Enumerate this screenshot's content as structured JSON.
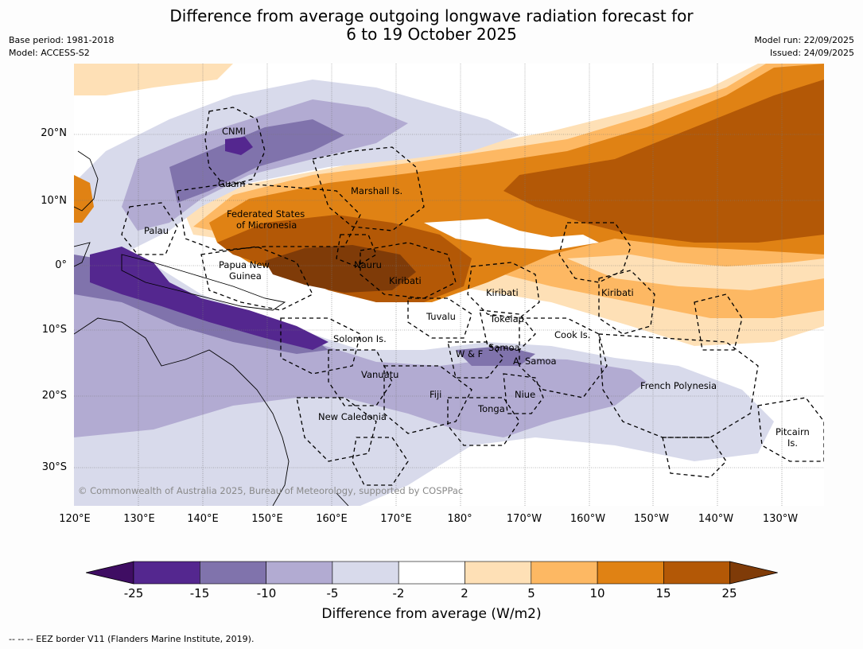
{
  "title": {
    "line1": "Difference from average outgoing longwave radiation forecast for",
    "line2": "6 to 19 October 2025"
  },
  "meta": {
    "base_period": "Base period: 1981-2018",
    "model": "Model: ACCESS-S2",
    "model_run": "Model run: 22/09/2025",
    "issued": "Issued: 24/09/2025"
  },
  "axes": {
    "lat_labels": [
      "20°N",
      "10°N",
      "0°",
      "10°S",
      "20°S",
      "30°S"
    ],
    "lon_labels": [
      "120°E",
      "130°E",
      "140°E",
      "150°E",
      "160°E",
      "170°E",
      "180°",
      "170°W",
      "160°W",
      "150°W",
      "140°W",
      "130°W"
    ]
  },
  "places": {
    "cnmi": "CNMI",
    "guam": "Guam",
    "marshall": "Marshall Is.",
    "fsm_1": "Federated States",
    "fsm_2": "of Micronesia",
    "palau": "Palau",
    "png_1": "Papua New",
    "png_2": "Guinea",
    "nauru": "Nauru",
    "kiribati_west": "Kiribati",
    "kiribati_central": "Kiribati",
    "kiribati_east": "Kiribati",
    "tuvalu": "Tuvalu",
    "tokelau": "Tokelau",
    "solomon": "Solomon Is.",
    "cook": "Cook Is.",
    "samoa": "Samoa",
    "wallis": "W & F",
    "am_samoa": "A. Samoa",
    "vanuatu": "Vanuatu",
    "fiji": "Fiji",
    "niue": "Niue",
    "tonga": "Tonga",
    "new_caledonia": "New Caledonia",
    "french_polynesia": "French Polynesia",
    "pitcairn_1": "Pitcairn",
    "pitcairn_2": "Is."
  },
  "copyright": "© Commonwealth of Australia 2025, Bureau of Meteorology, supported by COSPPac",
  "colorbar": {
    "ticks": [
      "-25",
      "-15",
      "-10",
      "-5",
      "-2",
      "2",
      "5",
      "10",
      "15",
      "25"
    ],
    "colors": [
      "#3f0d63",
      "#54278f",
      "#8073ac",
      "#b2abd2",
      "#d8daeb",
      "#ffffff",
      "#fee0b6",
      "#fdb863",
      "#e08214",
      "#b35806",
      "#7f3b08"
    ],
    "label": "Difference from average (W/m2)"
  },
  "footnote": "--  --  -- EEZ border V11 (Flanders Marine Institute, 2019)."
}
